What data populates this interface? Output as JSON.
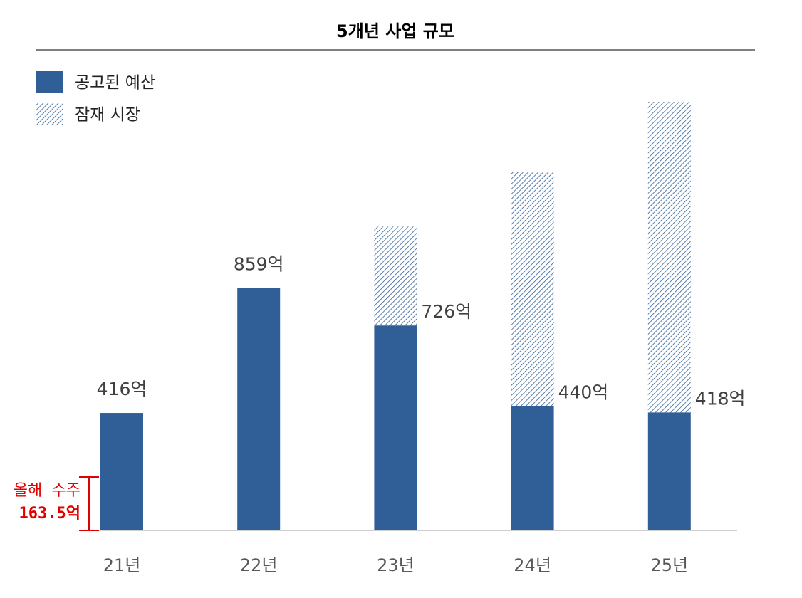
{
  "chart_data": {
    "type": "stacked_bar",
    "title": "5개년 사업 규모",
    "categories": [
      "21년",
      "22년",
      "23년",
      "24년",
      "25년"
    ],
    "series": [
      {
        "name": "공고된 예산",
        "color": "#2f5f96",
        "values": [
          416,
          859,
          726,
          440,
          418
        ],
        "value_labels": [
          "416억",
          "859억",
          "726억",
          "440억",
          "418억"
        ]
      },
      {
        "name": "잠재 시장",
        "color": "#2f5f96",
        "pattern": "hatch",
        "values": [
          null,
          null,
          350,
          830,
          1100
        ]
      }
    ],
    "annotation": [
      "올해 수주",
      "163.5억"
    ],
    "annotation_color": "#e00000"
  }
}
